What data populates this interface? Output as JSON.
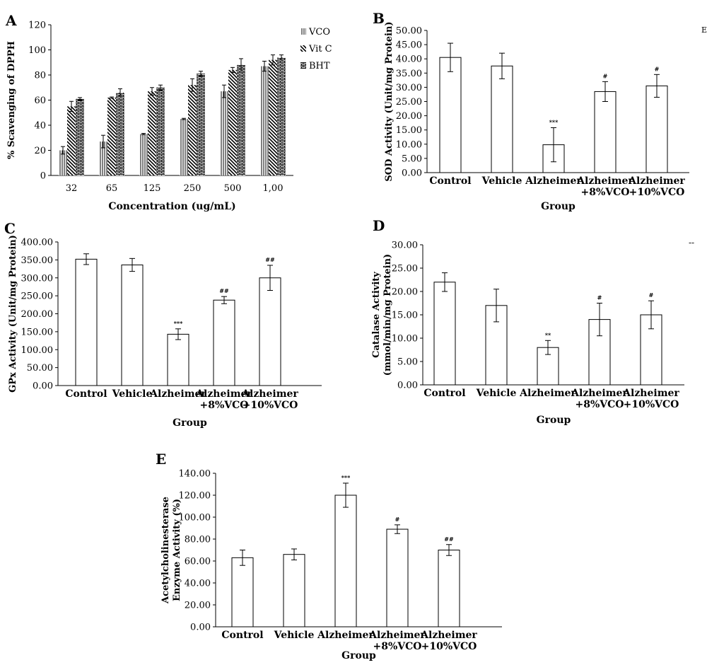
{
  "stray_marks": {
    "right_top": "E",
    "right_mid": "--"
  },
  "chart_data": [
    {
      "id": "A",
      "type": "bar",
      "panel_label": "A",
      "xlabel": "Concentration (ug/mL)",
      "ylabel": "% Scavenging of DPPH",
      "ylim": [
        0,
        120
      ],
      "yticks": [
        0,
        20,
        40,
        60,
        80,
        100,
        120
      ],
      "ytick_labels": [
        "0",
        "20",
        "40",
        "60",
        "80",
        "100",
        "120"
      ],
      "categories": [
        "32",
        "65",
        "125",
        "250",
        "500",
        "1,00"
      ],
      "series": [
        {
          "name": "VCO",
          "values": [
            20,
            27,
            33,
            45,
            67,
            87
          ],
          "errors": [
            3,
            5,
            0.5,
            0.5,
            5,
            4
          ],
          "pattern": "vertical"
        },
        {
          "name": "Vit C",
          "values": [
            55,
            62,
            67,
            72,
            84,
            92
          ],
          "errors": [
            4,
            0.5,
            3,
            5,
            2,
            4
          ],
          "pattern": "diagonal"
        },
        {
          "name": "BHT",
          "values": [
            61,
            66,
            70,
            81,
            88,
            94
          ],
          "errors": [
            1,
            3,
            2,
            2,
            5,
            2
          ],
          "pattern": "brick"
        }
      ],
      "legend": "right",
      "grid": false
    },
    {
      "id": "B",
      "type": "bar",
      "panel_label": "B",
      "xlabel": "Group",
      "ylabel": "SOD Activity (Unit/mg Protein)",
      "ylim": [
        0,
        50
      ],
      "yticks": [
        0,
        5,
        10,
        15,
        20,
        25,
        30,
        35,
        40,
        45,
        50
      ],
      "ytick_labels": [
        "0.00",
        "5.00",
        "10.00",
        "15.00",
        "20.00",
        "25.00",
        "30.00",
        "35.00",
        "40.00",
        "45.00",
        "50.00"
      ],
      "categories": [
        [
          "Control"
        ],
        [
          "Vehicle"
        ],
        [
          "Alzheimer"
        ],
        [
          "Alzheimer",
          "+8%VCO"
        ],
        [
          "Alzheimer",
          "+10%VCO"
        ]
      ],
      "values": [
        40.5,
        37.5,
        9.8,
        28.5,
        30.5
      ],
      "errors": [
        5,
        4.5,
        6,
        3.5,
        4
      ],
      "annotations": [
        "",
        "",
        "***",
        "#",
        "#"
      ],
      "grid": false
    },
    {
      "id": "C",
      "type": "bar",
      "panel_label": "C",
      "xlabel": "Group",
      "ylabel": "GPx Activity (Unit/mg Protein)",
      "ylim": [
        0,
        400
      ],
      "yticks": [
        0,
        50,
        100,
        150,
        200,
        250,
        300,
        350,
        400
      ],
      "ytick_labels": [
        "0.00",
        "50.00",
        "100.00",
        "150.00",
        "200.00",
        "250.00",
        "300.00",
        "350.00",
        "400.00"
      ],
      "categories": [
        [
          "Control"
        ],
        [
          "Vehicle"
        ],
        [
          "Alzheimer"
        ],
        [
          "Alzheimer",
          "+8%VCO"
        ],
        [
          "Alzheimer",
          "+10%VCO"
        ]
      ],
      "values": [
        352,
        336,
        143,
        238,
        300
      ],
      "errors": [
        15,
        18,
        15,
        10,
        35
      ],
      "annotations": [
        "",
        "",
        "***",
        "##",
        "##"
      ],
      "grid": false
    },
    {
      "id": "D",
      "type": "bar",
      "panel_label": "D",
      "xlabel": "Group",
      "ylabel": [
        "Catalase Activity",
        "(mmol/min/mg Protein)"
      ],
      "ylim": [
        0,
        30
      ],
      "yticks": [
        0,
        5,
        10,
        15,
        20,
        25,
        30
      ],
      "ytick_labels": [
        "0.00",
        "5.00",
        "10.00",
        "15.00",
        "20.00",
        "25.00",
        "30.00"
      ],
      "categories": [
        [
          "Control"
        ],
        [
          "Vehicle"
        ],
        [
          "Alzheimer"
        ],
        [
          "Alzheimer",
          "+8%VCO"
        ],
        [
          "Alzheimer",
          "+10%VCO"
        ]
      ],
      "values": [
        22,
        17,
        8,
        14,
        15
      ],
      "errors": [
        2,
        3.5,
        1.5,
        3.5,
        3
      ],
      "annotations": [
        "",
        "",
        "**",
        "#",
        "#"
      ],
      "grid": false
    },
    {
      "id": "E",
      "type": "bar",
      "panel_label": "E",
      "xlabel": "Group",
      "ylabel": [
        "Acetylcholinesterase",
        "Enzyme Activity (%)"
      ],
      "ylim": [
        0,
        140
      ],
      "yticks": [
        0,
        20,
        40,
        60,
        80,
        100,
        120,
        140
      ],
      "ytick_labels": [
        "0.00",
        "20.00",
        "40.00",
        "60.00",
        "80.00",
        "100.00",
        "120.00",
        "140.00"
      ],
      "categories": [
        [
          "Control"
        ],
        [
          "Vehicle"
        ],
        [
          "Alzheimer"
        ],
        [
          "Alzheimer",
          "+8%VCO"
        ],
        [
          "Alzheimer",
          "+10%VCO"
        ]
      ],
      "values": [
        63,
        66,
        120,
        89,
        70
      ],
      "errors": [
        7,
        5,
        11,
        4,
        5
      ],
      "annotations": [
        "",
        "",
        "***",
        "#",
        "##"
      ],
      "grid": false
    }
  ]
}
